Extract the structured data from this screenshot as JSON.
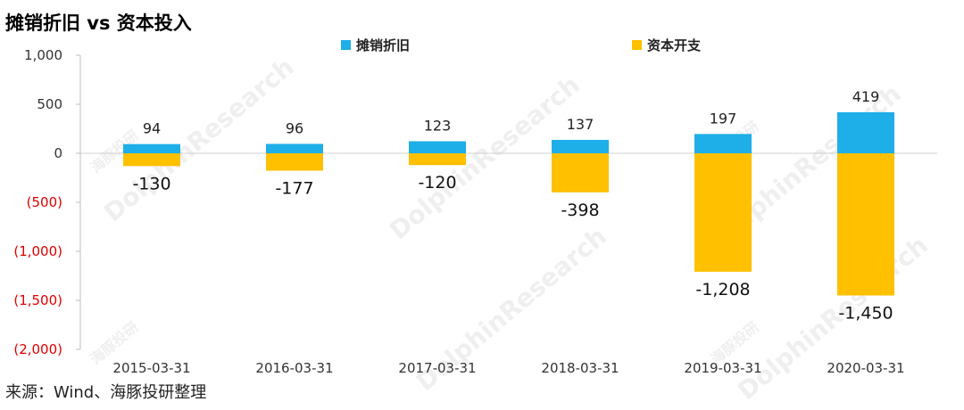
{
  "title": "摊销折旧 vs 资本投入",
  "source": "来源：Wind、海豚投研整理",
  "watermark": {
    "main": "DolphinResearch",
    "sub": "海豚投研"
  },
  "chart_data": {
    "type": "bar",
    "categories": [
      "2015-03-31",
      "2016-03-31",
      "2017-03-31",
      "2018-03-31",
      "2019-03-31",
      "2020-03-31"
    ],
    "series": [
      {
        "name": "摊销折旧",
        "values": [
          94,
          96,
          123,
          137,
          197,
          419
        ],
        "labels": [
          "94",
          "96",
          "123",
          "137",
          "197",
          "419"
        ],
        "color": "#1EAEE8"
      },
      {
        "name": "资本开支",
        "values": [
          -130,
          -177,
          -120,
          -398,
          -1208,
          -1450
        ],
        "labels": [
          "-130",
          "-177",
          "-120",
          "-398",
          "-1,208",
          "-1,450"
        ],
        "color": "#FFC000"
      }
    ],
    "ylim": [
      -2000,
      1000
    ],
    "yticks": [
      1000,
      500,
      0,
      -500,
      -1000,
      -1500,
      -2000
    ],
    "ytick_labels": [
      "1,000",
      "500",
      "0",
      "(500)",
      "(1,000)",
      "(1,500)",
      "(2,000)"
    ],
    "negative_tick_color": "#E00000",
    "positive_tick_color": "#333333",
    "legend": "top-center",
    "grid": false,
    "stacked": true
  }
}
